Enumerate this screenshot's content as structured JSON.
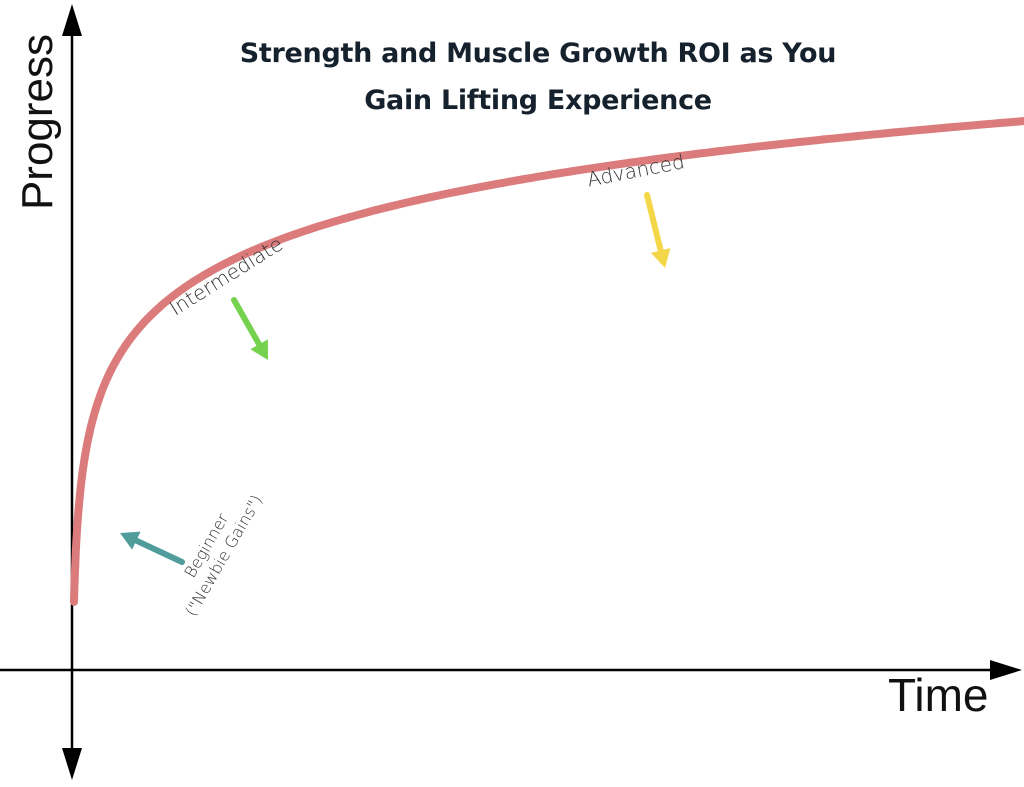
{
  "chart_data": {
    "type": "line",
    "title": [
      "Strength and Muscle Growth ROI as You",
      "Gain Lifting Experience"
    ],
    "xlabel": "Time",
    "ylabel": "Progress",
    "grid": false,
    "series": [
      {
        "curve": "logarithmic",
        "color": "#db7b7b"
      }
    ],
    "annotations": [
      {
        "label": "Beginner",
        "label_line2": "(\"Newbie Gains\")",
        "arrow_color": "#4f9c9a"
      },
      {
        "label": "Intermediate",
        "arrow_color": "#74d24f"
      },
      {
        "label": "Advanced",
        "arrow_color": "#f4d749"
      }
    ],
    "colors": {
      "axis": "#000000",
      "curve": "#db7b7b",
      "title": "#15222e"
    }
  }
}
